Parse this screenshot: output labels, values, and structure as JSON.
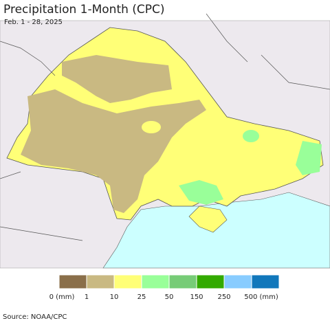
{
  "header": {
    "title": "Precipitation 1-Month (CPC)",
    "subtitle": "Feb. 1 - 28, 2025"
  },
  "legend": {
    "colors": [
      "#8a6f4a",
      "#c9b982",
      "#ffff77",
      "#99ff99",
      "#77cc77",
      "#33aa00",
      "#88ccff",
      "#1177bb"
    ],
    "labels": [
      "0 (mm)",
      "1",
      "10",
      "25",
      "50",
      "150",
      "250",
      "500 (mm)"
    ]
  },
  "footer": {
    "source": "Source: NOAA/CPC"
  }
}
